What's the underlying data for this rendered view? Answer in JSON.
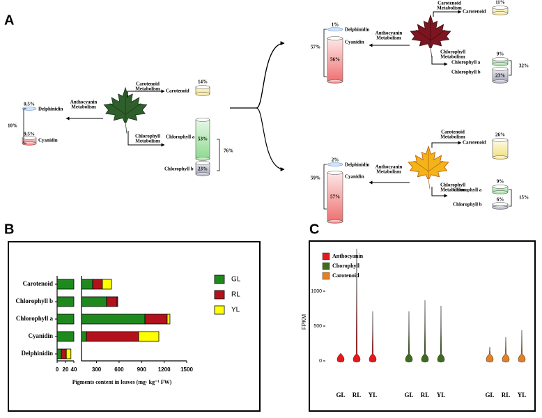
{
  "panel_labels": [
    "A",
    "B",
    "C"
  ],
  "diagram": {
    "groups": [
      {
        "anthocyanin_metabolism": [
          "Anthocyanin",
          "Metabolism"
        ],
        "carotenoid_metabolism": [
          "Carotenoid",
          "Metabolism"
        ],
        "chlorophyll_metabolism": [
          "Chlorophyll",
          "Metabolism"
        ],
        "delphinidin": {
          "label": "Delphinidin",
          "percent": "0.5%"
        },
        "cyanidin": {
          "label": "Cyanidin",
          "percent": "9.5%"
        },
        "anthocyanin_total": "10%",
        "carotenoid": {
          "label": "Carotenoid",
          "percent": "14%"
        },
        "chlorophyll_a": {
          "label": "Chlorophyll a",
          "percent": "53%"
        },
        "chlorophyll_b": {
          "label": "Chlorophyll b",
          "percent": "23%"
        },
        "chlorophyll_total": "76%"
      },
      {
        "anthocyanin_metabolism": [
          "Anthocyanin",
          "Metabolism"
        ],
        "carotenoid_metabolism": [
          "Carotenoid",
          "Metabolism"
        ],
        "chlorophyll_metabolism": [
          "Chlorophyll",
          "Metabolism"
        ],
        "delphinidin": {
          "label": "Delphinidin",
          "percent": "1%"
        },
        "cyanidin": {
          "label": "Cyanidin",
          "percent": "56%"
        },
        "anthocyanin_total": "57%",
        "carotenoid": {
          "label": "Carotenoid",
          "percent": "11%"
        },
        "chlorophyll_a": {
          "label": "Chlorophyll a",
          "percent": "9%"
        },
        "chlorophyll_b": {
          "label": "Chlorophyll b",
          "percent": "23%"
        },
        "chlorophyll_total": "32%"
      },
      {
        "anthocyanin_metabolism": [
          "Anthocyanin",
          "Metabolism"
        ],
        "carotenoid_metabolism": [
          "Carotenoid",
          "Metabolism"
        ],
        "chlorophyll_metabolism": [
          "Chlorophyll",
          "Metabolism"
        ],
        "delphinidin": {
          "label": "Delphinidin",
          "percent": "2%"
        },
        "cyanidin": {
          "label": "Cyanidin",
          "percent": "57%"
        },
        "anthocyanin_total": "59%",
        "carotenoid": {
          "label": "Carotenoid",
          "percent": "26%"
        },
        "chlorophyll_a": {
          "label": "Chlorophyll a",
          "percent": "9%"
        },
        "chlorophyll_b": {
          "label": "Chlorophyll b",
          "percent": "6%"
        },
        "chlorophyll_total": "15%"
      }
    ]
  },
  "chart_data": [
    {
      "type": "stacked-hbar",
      "xlabel": "Pigments content in leaves (mg· kg⁻¹ FW)",
      "categories": [
        "Carotenoid",
        "Chlorophyll b",
        "Chlorophyll a",
        "Cyanidin",
        "Delphinidin"
      ],
      "series": [
        {
          "name": "GL",
          "color": "#1e8a1e",
          "values": [
            248,
            434,
            944,
            165,
            10
          ]
        },
        {
          "name": "RL",
          "color": "#b3121c",
          "values": [
            130,
            139,
            296,
            695,
            12
          ]
        },
        {
          "name": "YL",
          "color": "#ffff00",
          "values": [
            121,
            9,
            37,
            269,
            11
          ]
        }
      ],
      "xlim": [
        0,
        1500
      ],
      "axis_break": [
        40,
        100
      ],
      "xticks": [
        0,
        20,
        40,
        300,
        600,
        900,
        1200,
        1500
      ],
      "legend": "right"
    },
    {
      "type": "violin",
      "ylabel": "FPKM",
      "categories": [
        "GL",
        "RL",
        "YL"
      ],
      "series": [
        {
          "name": "Anthocyanin",
          "color": "#e41a1c",
          "values": [
            110,
            1610,
            710
          ]
        },
        {
          "name": "Chorophyll",
          "color": "#3f6b1f",
          "values": [
            710,
            870,
            790
          ]
        },
        {
          "name": "Carotenoid",
          "color": "#e67e22",
          "values": [
            200,
            340,
            440
          ]
        }
      ],
      "ylim": [
        -100,
        1680
      ],
      "yticks": [
        0,
        500,
        1000
      ],
      "legend": "upper left"
    }
  ]
}
